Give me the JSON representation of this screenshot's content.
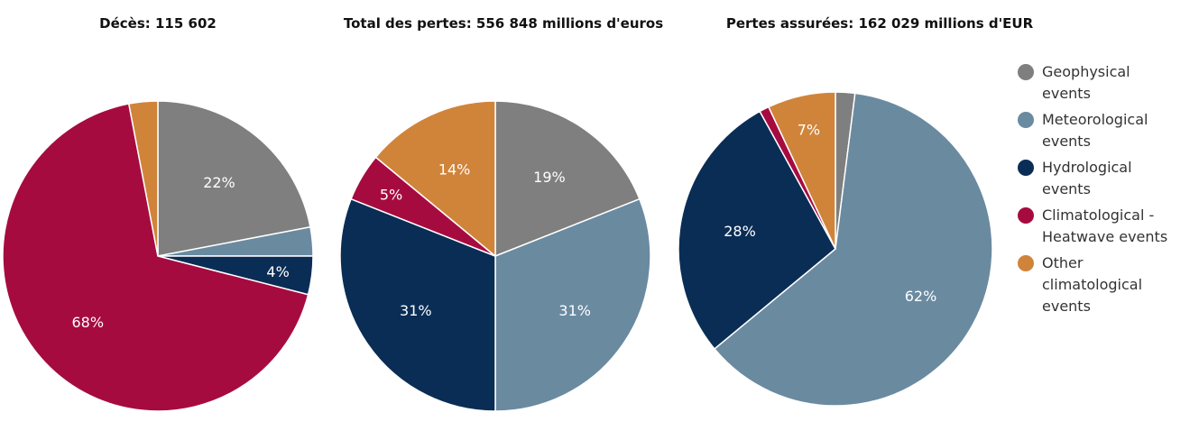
{
  "legend": [
    {
      "label": "Geophysical events",
      "color": "#7f7f7f"
    },
    {
      "label": "Meteorological events",
      "color": "#6a8aa0"
    },
    {
      "label": "Hydrological events",
      "color": "#0a2d55"
    },
    {
      "label": "Climatological - Heatwave events",
      "color": "#a60b3f"
    },
    {
      "label": "Other climatological events",
      "color": "#d0843a"
    }
  ],
  "chart_data": [
    {
      "type": "pie",
      "title": "Décès: 115 602",
      "categories": [
        "Geophysical events",
        "Meteorological events",
        "Hydrological events",
        "Climatological - Heatwave events",
        "Other climatological events"
      ],
      "values": [
        22,
        3,
        4,
        68,
        3
      ],
      "labels": [
        "22%",
        null,
        "4%",
        "68%",
        null
      ]
    },
    {
      "type": "pie",
      "title": "Total des pertes: 556 848 millions d'euros",
      "categories": [
        "Geophysical events",
        "Meteorological events",
        "Hydrological events",
        "Climatological - Heatwave events",
        "Other climatological events"
      ],
      "values": [
        19,
        31,
        31,
        5,
        14
      ],
      "labels": [
        "19%",
        "31%",
        "31%",
        "5%",
        "14%"
      ]
    },
    {
      "type": "pie",
      "title": "Pertes assurées: 162 029 millions d'EUR",
      "categories": [
        "Geophysical events",
        "Meteorological events",
        "Hydrological events",
        "Climatological - Heatwave events",
        "Other climatological events"
      ],
      "values": [
        2,
        62,
        28,
        1,
        7
      ],
      "labels": [
        null,
        "62%",
        "28%",
        null,
        "7%"
      ]
    }
  ]
}
